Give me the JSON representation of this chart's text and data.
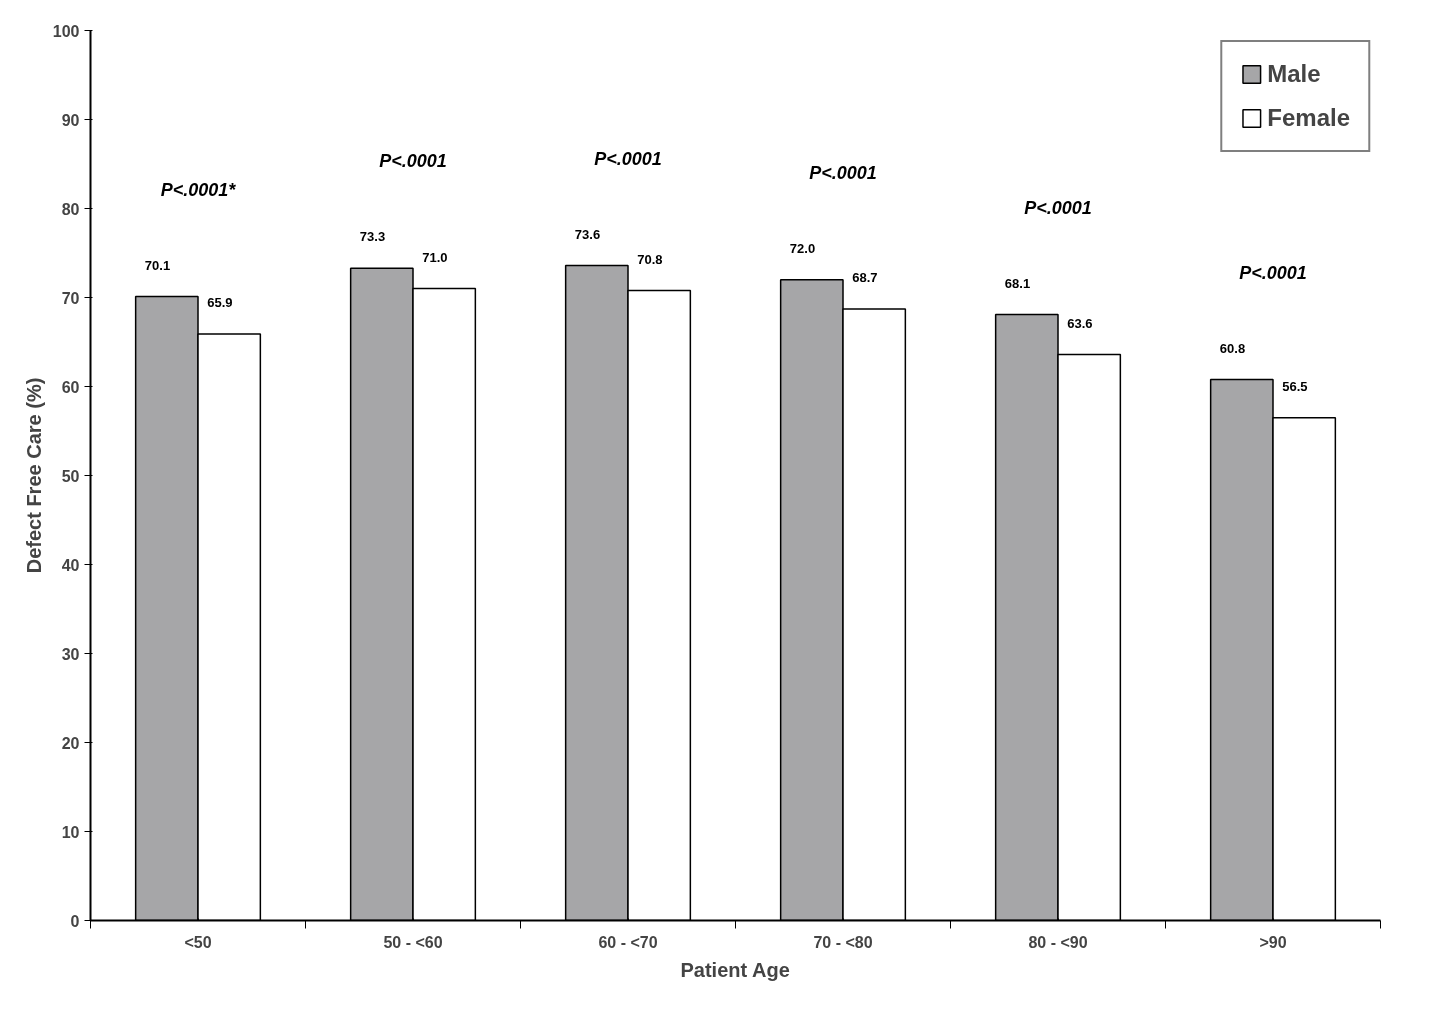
{
  "chart_data": {
    "type": "bar",
    "categories": [
      "<50",
      "50 - <60",
      "60 - <70",
      "70 - <80",
      "80 - <90",
      ">90"
    ],
    "series": [
      {
        "name": "Male",
        "color": "#a6a6a8",
        "values": [
          70.1,
          73.3,
          73.6,
          72.0,
          68.1,
          60.8
        ],
        "value_labels": [
          "70.1",
          "73.3",
          "73.6",
          "72.0",
          "68.1",
          "60.8"
        ]
      },
      {
        "name": "Female",
        "color": "#ffffff",
        "values": [
          65.9,
          71.0,
          70.8,
          68.7,
          63.6,
          56.5
        ],
        "value_labels": [
          "65.9",
          "71.0",
          "70.8",
          "68.7",
          "63.6",
          "56.5"
        ]
      }
    ],
    "xlabel": "Patient Age",
    "ylabel": "Defect Free Care (%)",
    "ylim": [
      0,
      100
    ],
    "yticks": [
      0,
      10,
      20,
      30,
      40,
      50,
      60,
      70,
      80,
      90,
      100
    ],
    "annotations": [
      "P<.0001*",
      "P<.0001",
      "P<.0001",
      "P<.0001",
      "P<.0001",
      "P<.0001"
    ],
    "grid": false,
    "legend": "top right"
  }
}
